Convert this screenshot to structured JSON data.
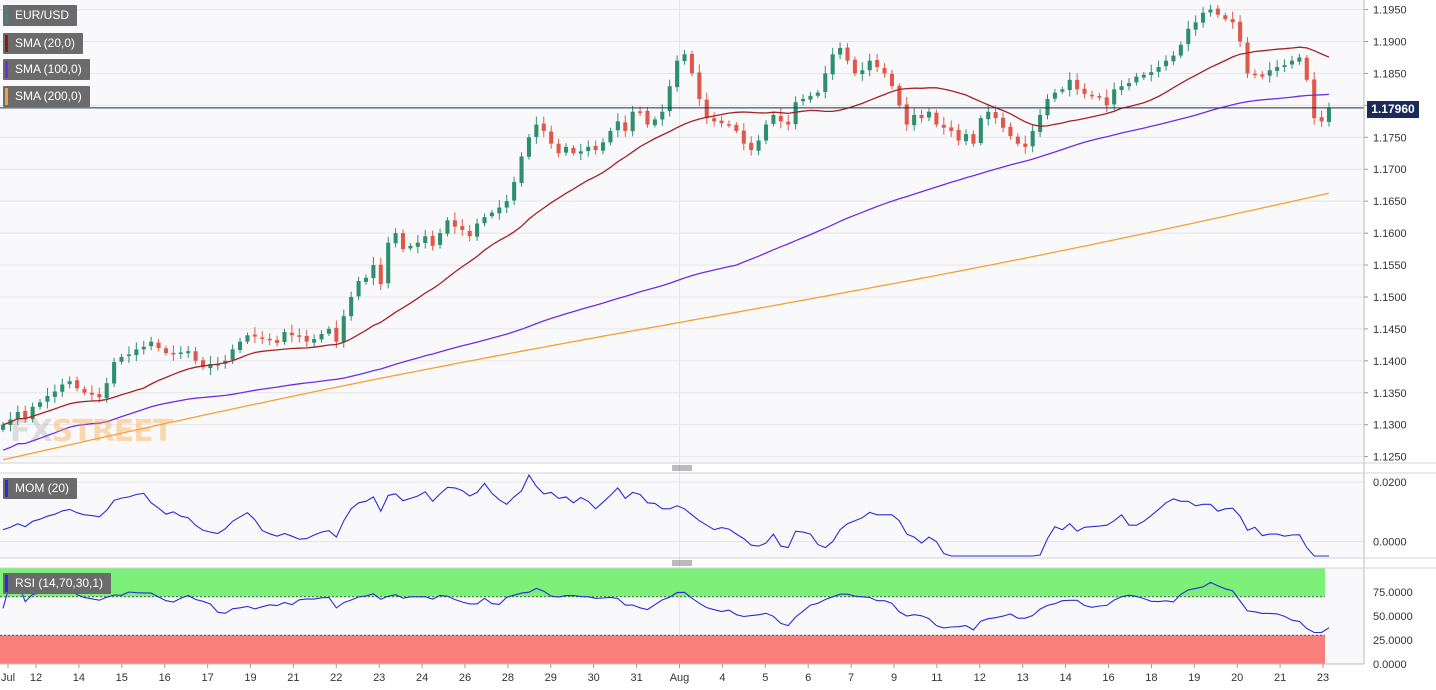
{
  "chart_data": [
    {
      "type": "candlestick",
      "symbol": "EUR/USD",
      "last_price_label": "1.17960",
      "ylim": [
        1.124,
        1.1965
      ],
      "y_ticks": [
        "1.1950",
        "1.1900",
        "1.1850",
        "1.1800",
        "1.1750",
        "1.1700",
        "1.1650",
        "1.1600",
        "1.1550",
        "1.1500",
        "1.1450",
        "1.1400",
        "1.1350",
        "1.1300",
        "1.1250"
      ],
      "x_ticks": [
        "Jul",
        "12",
        "14",
        "15",
        "16",
        "17",
        "19",
        "21",
        "22",
        "23",
        "24",
        "26",
        "28",
        "29",
        "30",
        "31",
        "Aug",
        "4",
        "5",
        "6",
        "7",
        "9",
        "11",
        "12",
        "13",
        "14",
        "16",
        "18",
        "19",
        "20",
        "21",
        "23"
      ],
      "legend": [
        {
          "label": "EUR/USD",
          "color": "#3a8c6e"
        },
        {
          "label": "SMA (20,0)",
          "color": "#8b1a1a"
        },
        {
          "label": "SMA (100,0)",
          "color": "#6a2de0"
        },
        {
          "label": "SMA (200,0)",
          "color": "#f5a033"
        }
      ],
      "colors": {
        "up": "#2e8f6f",
        "down": "#e0584a",
        "sma20": "#a52222",
        "sma100": "#6b2ee8",
        "sma200": "#f5a033",
        "last_line": "#1a2a5a"
      },
      "series_close": [
        1.13,
        1.1308,
        1.132,
        1.131,
        1.1328,
        1.1335,
        1.1345,
        1.1352,
        1.1363,
        1.1368,
        1.1357,
        1.135,
        1.1347,
        1.1343,
        1.1365,
        1.1398,
        1.1406,
        1.141,
        1.1418,
        1.1422,
        1.143,
        1.142,
        1.1412,
        1.141,
        1.1413,
        1.1415,
        1.14,
        1.139,
        1.1395,
        1.1395,
        1.14,
        1.1418,
        1.143,
        1.144,
        1.1438,
        1.1435,
        1.1432,
        1.1428,
        1.1445,
        1.144,
        1.1438,
        1.143,
        1.1434,
        1.1442,
        1.145,
        1.143,
        1.147,
        1.15,
        1.1525,
        1.153,
        1.155,
        1.152,
        1.1585,
        1.16,
        1.1575,
        1.158,
        1.1585,
        1.1595,
        1.158,
        1.16,
        1.162,
        1.161,
        1.1605,
        1.1595,
        1.1615,
        1.1625,
        1.1632,
        1.164,
        1.165,
        1.168,
        1.172,
        1.175,
        1.177,
        1.176,
        1.174,
        1.1725,
        1.1735,
        1.1725,
        1.1728,
        1.1735,
        1.173,
        1.1742,
        1.176,
        1.1775,
        1.176,
        1.179,
        1.179,
        1.177,
        1.1778,
        1.179,
        1.183,
        1.187,
        1.188,
        1.185,
        1.181,
        1.178,
        1.1775,
        1.1772,
        1.177,
        1.176,
        1.174,
        1.173,
        1.1745,
        1.177,
        1.1785,
        1.1775,
        1.177,
        1.1805,
        1.181,
        1.1815,
        1.182,
        1.185,
        1.188,
        1.189,
        1.187,
        1.185,
        1.1855,
        1.187,
        1.186,
        1.185,
        1.183,
        1.18,
        1.177,
        1.1785,
        1.178,
        1.179,
        1.177,
        1.1765,
        1.176,
        1.1745,
        1.1755,
        1.174,
        1.178,
        1.179,
        1.178,
        1.1765,
        1.1752,
        1.174,
        1.1735,
        1.176,
        1.1785,
        1.181,
        1.182,
        1.1825,
        1.184,
        1.1825,
        1.1818,
        1.1815,
        1.1812,
        1.18,
        1.1825,
        1.183,
        1.1835,
        1.1845,
        1.1848,
        1.1852,
        1.186,
        1.187,
        1.1878,
        1.1895,
        1.192,
        1.193,
        1.1945,
        1.195,
        1.1942,
        1.1935,
        1.193,
        1.19,
        1.185,
        1.1848,
        1.1845,
        1.1855,
        1.186,
        1.1863,
        1.187,
        1.1875,
        1.184,
        1.178,
        1.1775,
        1.1796
      ]
    },
    {
      "type": "line",
      "name": "MOM (20)",
      "ylim": [
        -0.0055,
        0.023
      ],
      "y_ticks": [
        "0.0200",
        "0.0000"
      ]
    },
    {
      "type": "line",
      "name": "RSI (14,70,30,1)",
      "ylim": [
        0,
        100
      ],
      "overbought": 70,
      "oversold": 30,
      "y_ticks": [
        "75.0000",
        "50.0000",
        "25.0000",
        "0.0000"
      ]
    }
  ],
  "labels": {
    "price_tag": "1.17960",
    "watermark_main": "FX",
    "watermark_accent": "STREET"
  }
}
